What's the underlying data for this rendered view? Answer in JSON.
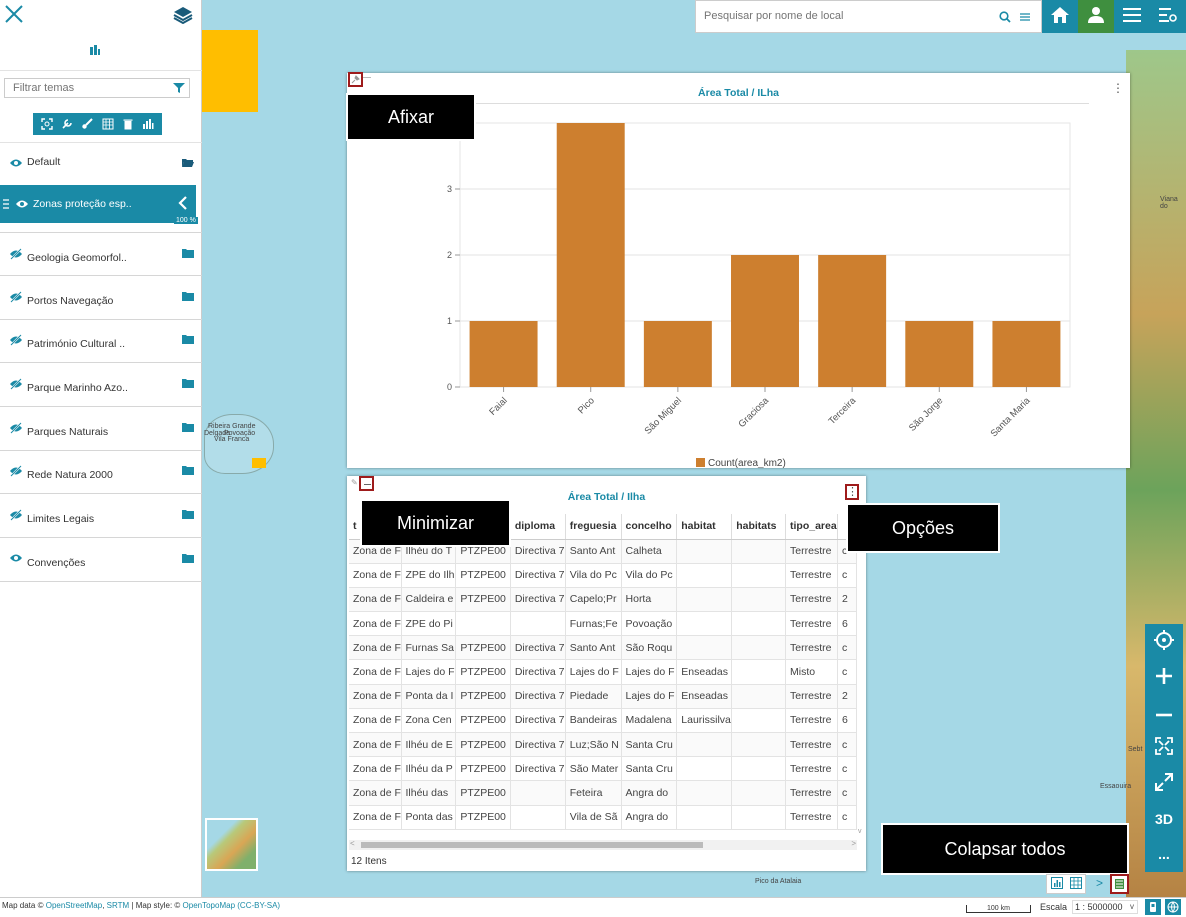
{
  "sidebar": {
    "filter_placeholder": "Filtrar temas",
    "opacity_label": "100 %",
    "layers": [
      {
        "label": "Default",
        "visible": true
      },
      {
        "label": "Zonas proteção esp..",
        "visible": true,
        "active": true
      },
      {
        "label": "Geologia Geomorfol..",
        "visible": false
      },
      {
        "label": "Portos Navegação",
        "visible": false
      },
      {
        "label": "Património Cultural ..",
        "visible": false
      },
      {
        "label": "Parque Marinho Azo..",
        "visible": false
      },
      {
        "label": "Parques Naturais",
        "visible": false
      },
      {
        "label": "Rede Natura 2000",
        "visible": false
      },
      {
        "label": "Limites Legais",
        "visible": false
      },
      {
        "label": "Convenções",
        "visible": true
      }
    ]
  },
  "search": {
    "placeholder": "Pesquisar por nome de local"
  },
  "chart_panel": {
    "title": "Área Total / ILha",
    "options_icon": "⋮"
  },
  "chart_data": {
    "type": "bar",
    "categories": [
      "Faial",
      "Pico",
      "São Miguel",
      "Graciosa",
      "Terceira",
      "São Jorge",
      "Santa Maria"
    ],
    "series": [
      {
        "name": "Count(area_km2)",
        "values": [
          1,
          4,
          1,
          2,
          2,
          1,
          1
        ],
        "color": "#cd7f2f"
      }
    ],
    "ylim": [
      0,
      4
    ],
    "yticks": [
      "0",
      "1",
      "2",
      "3"
    ],
    "grid": true,
    "legend": "bottom"
  },
  "table_panel": {
    "title": "Área Total / Ilha",
    "count_label": "12 Itens",
    "columns": [
      "t",
      "",
      "",
      "diploma",
      "freguesia",
      "concelho",
      "habitat",
      "habitats",
      "tipo_areas",
      ""
    ],
    "rows": [
      [
        "Zona de F",
        "Ilhéu do T",
        "PTZPE00",
        "Directiva 7",
        "Santo Ant",
        "Calheta",
        "",
        "",
        "Terrestre",
        "c"
      ],
      [
        "Zona de F",
        "ZPE do Ilh",
        "PTZPE00",
        "Directiva 7",
        "Vila do Pc",
        "Vila do Pc",
        "",
        "",
        "Terrestre",
        "c"
      ],
      [
        "Zona de F",
        "Caldeira e",
        "PTZPE00",
        "Directiva 7",
        "Capelo;Pr",
        "Horta",
        "",
        "",
        "Terrestre",
        "2"
      ],
      [
        "Zona de F",
        "ZPE do Pi",
        "",
        "",
        "Furnas;Fe",
        "Povoação",
        "",
        "",
        "Terrestre",
        "6"
      ],
      [
        "Zona de F",
        "Furnas Sa",
        "PTZPE00",
        "Directiva 7",
        "Santo Ant",
        "São Roqu",
        "",
        "",
        "Terrestre",
        "c"
      ],
      [
        "Zona de F",
        "Lajes do F",
        "PTZPE00",
        "Directiva 7",
        "Lajes do F",
        "Lajes do F",
        "Enseadas",
        "",
        "Misto",
        "c"
      ],
      [
        "Zona de F",
        "Ponta da I",
        "PTZPE00",
        "Directiva 7",
        "Piedade",
        "Lajes do F",
        "Enseadas",
        "",
        "Terrestre",
        "2"
      ],
      [
        "Zona de F",
        "Zona Cen",
        "PTZPE00",
        "Directiva 7",
        "Bandeiras",
        "Madalena",
        "Laurissilva",
        "",
        "Terrestre",
        "6"
      ],
      [
        "Zona de F",
        "Ilhéu de E",
        "PTZPE00",
        "Directiva 7",
        "Luz;São N",
        "Santa Cru",
        "",
        "",
        "Terrestre",
        "c"
      ],
      [
        "Zona de F",
        "Ilhéu da P",
        "PTZPE00",
        "Directiva 7",
        "São Mater",
        "Santa Cru",
        "",
        "",
        "Terrestre",
        "c"
      ],
      [
        "Zona de F",
        "Ilhéu das",
        "PTZPE00",
        "",
        "Feteira",
        "Angra do",
        "",
        "",
        "Terrestre",
        "c"
      ],
      [
        "Zona de F",
        "Ponta das",
        "PTZPE00",
        "",
        "Vila de Sã",
        "Angra do",
        "",
        "",
        "Terrestre",
        "c"
      ]
    ]
  },
  "callouts": {
    "pin": "Afixar",
    "minimize": "Minimizar",
    "options": "Opções",
    "collapse_all": "Colapsar todos"
  },
  "map_labels": {
    "a": "Ribeira Grande",
    "b": "Delgada",
    "c": "Povoação",
    "d": "Vila Franca",
    "e": "Viana do",
    "f": "Sebt",
    "g": "Essaouira",
    "h": "Pico da Atalaia"
  },
  "right_controls": [
    "locate",
    "+",
    "−",
    "extent",
    "fullscreen",
    "3D",
    "..."
  ],
  "bottom": {
    "attribution_prefix": "Map data ©",
    "osm": "OpenStreetMap",
    "srtm": "SRTM",
    "style_prefix": "| Map style: ©",
    "otm": "OpenTopoMap",
    "license": "(CC-BY-SA)",
    "scale_bar": "100 km",
    "escala_label": "Escala",
    "escala_value": "1 : 5000000"
  },
  "colors": {
    "accent": "#1a8aa6",
    "bar": "#cd7f2f",
    "callout_border": "#9e1b1b"
  }
}
